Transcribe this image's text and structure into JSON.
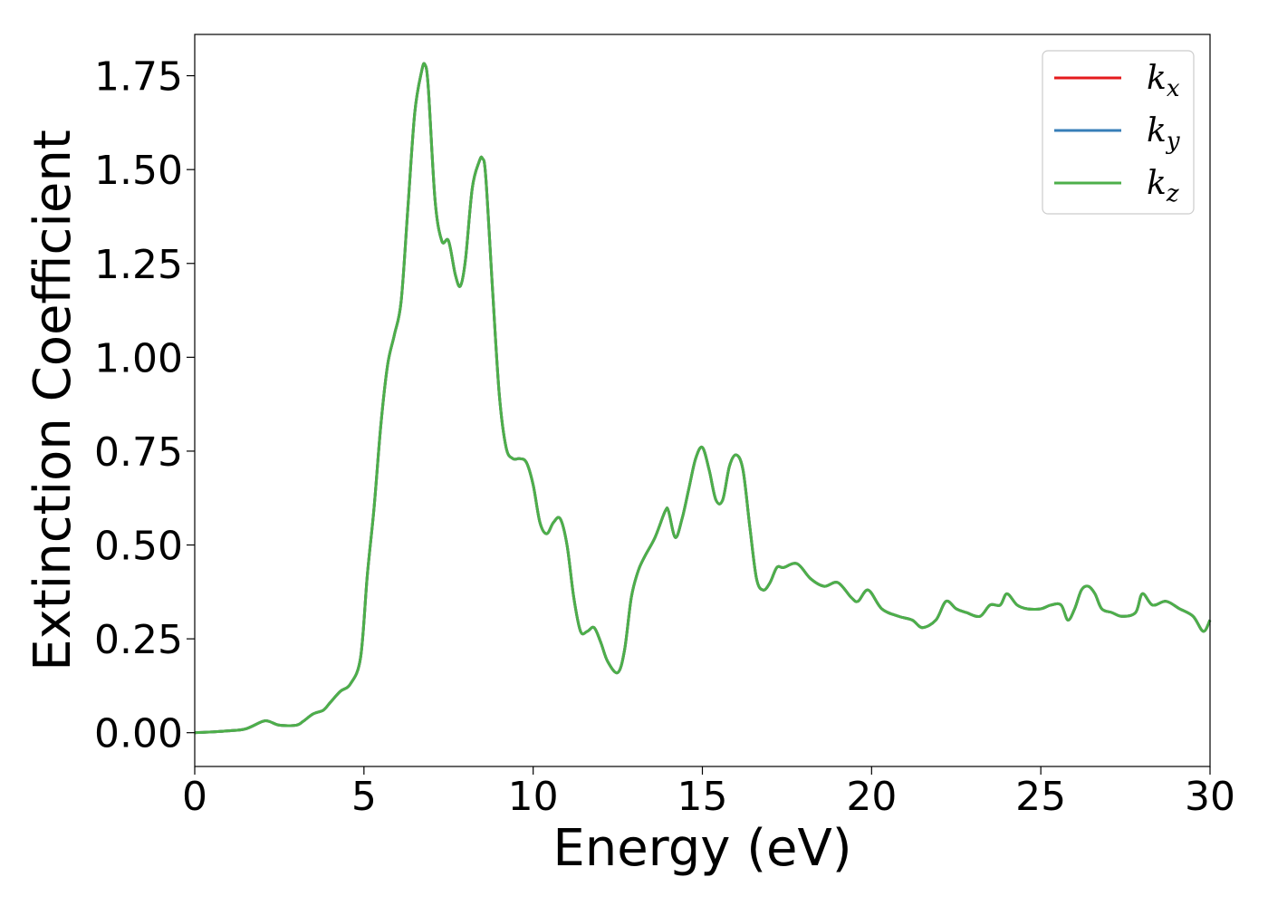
{
  "chart_data": {
    "type": "line",
    "title": "",
    "xlabel": "Energy (eV)",
    "ylabel": "Extinction Coefficient",
    "xlim": [
      0,
      30
    ],
    "ylim": [
      -0.09,
      1.86
    ],
    "xticks": [
      0,
      5,
      10,
      15,
      20,
      25,
      30
    ],
    "xtick_labels": [
      "0",
      "5",
      "10",
      "15",
      "20",
      "25",
      "30"
    ],
    "yticks": [
      0.0,
      0.25,
      0.5,
      0.75,
      1.0,
      1.25,
      1.5,
      1.75
    ],
    "ytick_labels": [
      "0.00",
      "0.25",
      "0.50",
      "0.75",
      "1.00",
      "1.25",
      "1.50",
      "1.75"
    ],
    "grid": false,
    "legend_position": "top-right",
    "x": [
      0,
      0.5,
      1,
      1.5,
      2,
      2.2,
      2.5,
      3,
      3.2,
      3.5,
      3.8,
      4,
      4.3,
      4.6,
      4.9,
      5.1,
      5.3,
      5.5,
      5.7,
      5.9,
      6.1,
      6.3,
      6.5,
      6.7,
      6.8,
      6.9,
      7.1,
      7.3,
      7.5,
      7.7,
      7.85,
      8,
      8.2,
      8.4,
      8.5,
      8.6,
      8.8,
      9,
      9.2,
      9.4,
      9.6,
      9.8,
      10,
      10.2,
      10.4,
      10.6,
      10.8,
      11,
      11.2,
      11.4,
      11.6,
      11.8,
      12,
      12.2,
      12.5,
      12.7,
      12.9,
      13.1,
      13.3,
      13.6,
      13.9,
      14,
      14.2,
      14.4,
      14.6,
      14.8,
      15,
      15.2,
      15.4,
      15.6,
      15.8,
      16,
      16.2,
      16.4,
      16.6,
      16.8,
      17,
      17.2,
      17.4,
      17.8,
      18.2,
      18.6,
      19,
      19.4,
      19.6,
      19.9,
      20.3,
      20.8,
      21.2,
      21.5,
      21.9,
      22.2,
      22.5,
      22.8,
      23.2,
      23.5,
      23.8,
      24,
      24.3,
      24.6,
      25,
      25.3,
      25.6,
      25.8,
      26,
      26.2,
      26.4,
      26.6,
      26.8,
      27.1,
      27.4,
      27.8,
      28,
      28.3,
      28.7,
      29.1,
      29.5,
      29.8,
      30
    ],
    "series": [
      {
        "name": "k_x",
        "legend_main": "k",
        "legend_sub": "x",
        "color": "#e41a1c",
        "values": [
          0,
          0.002,
          0.005,
          0.01,
          0.03,
          0.03,
          0.02,
          0.02,
          0.03,
          0.05,
          0.06,
          0.08,
          0.11,
          0.13,
          0.2,
          0.42,
          0.6,
          0.82,
          0.98,
          1.06,
          1.15,
          1.4,
          1.65,
          1.76,
          1.78,
          1.72,
          1.42,
          1.31,
          1.31,
          1.22,
          1.19,
          1.26,
          1.45,
          1.52,
          1.53,
          1.48,
          1.18,
          0.9,
          0.76,
          0.73,
          0.73,
          0.72,
          0.66,
          0.56,
          0.53,
          0.56,
          0.57,
          0.5,
          0.36,
          0.27,
          0.27,
          0.28,
          0.24,
          0.19,
          0.16,
          0.22,
          0.36,
          0.43,
          0.47,
          0.52,
          0.59,
          0.59,
          0.52,
          0.57,
          0.65,
          0.73,
          0.76,
          0.7,
          0.62,
          0.62,
          0.71,
          0.74,
          0.7,
          0.55,
          0.41,
          0.38,
          0.4,
          0.44,
          0.44,
          0.45,
          0.41,
          0.39,
          0.4,
          0.36,
          0.35,
          0.38,
          0.33,
          0.31,
          0.3,
          0.28,
          0.3,
          0.35,
          0.33,
          0.32,
          0.31,
          0.34,
          0.34,
          0.37,
          0.34,
          0.33,
          0.33,
          0.34,
          0.34,
          0.3,
          0.33,
          0.38,
          0.39,
          0.37,
          0.33,
          0.32,
          0.31,
          0.32,
          0.37,
          0.34,
          0.35,
          0.33,
          0.31,
          0.27,
          0.3
        ]
      },
      {
        "name": "k_y",
        "legend_main": "k",
        "legend_sub": "y",
        "color": "#377eb8",
        "values": [
          0,
          0.002,
          0.005,
          0.01,
          0.03,
          0.03,
          0.02,
          0.02,
          0.03,
          0.05,
          0.06,
          0.08,
          0.11,
          0.13,
          0.2,
          0.42,
          0.6,
          0.82,
          0.98,
          1.06,
          1.15,
          1.4,
          1.65,
          1.76,
          1.78,
          1.72,
          1.42,
          1.31,
          1.31,
          1.22,
          1.19,
          1.26,
          1.45,
          1.52,
          1.53,
          1.48,
          1.18,
          0.9,
          0.76,
          0.73,
          0.73,
          0.72,
          0.66,
          0.56,
          0.53,
          0.56,
          0.57,
          0.5,
          0.36,
          0.27,
          0.27,
          0.28,
          0.24,
          0.19,
          0.16,
          0.22,
          0.36,
          0.43,
          0.47,
          0.52,
          0.59,
          0.59,
          0.52,
          0.57,
          0.65,
          0.73,
          0.76,
          0.7,
          0.62,
          0.62,
          0.71,
          0.74,
          0.7,
          0.55,
          0.41,
          0.38,
          0.4,
          0.44,
          0.44,
          0.45,
          0.41,
          0.39,
          0.4,
          0.36,
          0.35,
          0.38,
          0.33,
          0.31,
          0.3,
          0.28,
          0.3,
          0.35,
          0.33,
          0.32,
          0.31,
          0.34,
          0.34,
          0.37,
          0.34,
          0.33,
          0.33,
          0.34,
          0.34,
          0.3,
          0.33,
          0.38,
          0.39,
          0.37,
          0.33,
          0.32,
          0.31,
          0.32,
          0.37,
          0.34,
          0.35,
          0.33,
          0.31,
          0.27,
          0.3
        ]
      },
      {
        "name": "k_z",
        "legend_main": "k",
        "legend_sub": "z",
        "color": "#4daf4a",
        "values": [
          0,
          0.002,
          0.005,
          0.01,
          0.03,
          0.03,
          0.02,
          0.02,
          0.03,
          0.05,
          0.06,
          0.08,
          0.11,
          0.13,
          0.2,
          0.42,
          0.6,
          0.82,
          0.98,
          1.06,
          1.15,
          1.4,
          1.65,
          1.76,
          1.78,
          1.72,
          1.42,
          1.31,
          1.31,
          1.22,
          1.19,
          1.26,
          1.45,
          1.52,
          1.53,
          1.48,
          1.18,
          0.9,
          0.76,
          0.73,
          0.73,
          0.72,
          0.66,
          0.56,
          0.53,
          0.56,
          0.57,
          0.5,
          0.36,
          0.27,
          0.27,
          0.28,
          0.24,
          0.19,
          0.16,
          0.22,
          0.36,
          0.43,
          0.47,
          0.52,
          0.59,
          0.59,
          0.52,
          0.57,
          0.65,
          0.73,
          0.76,
          0.7,
          0.62,
          0.62,
          0.71,
          0.74,
          0.7,
          0.55,
          0.41,
          0.38,
          0.4,
          0.44,
          0.44,
          0.45,
          0.41,
          0.39,
          0.4,
          0.36,
          0.35,
          0.38,
          0.33,
          0.31,
          0.3,
          0.28,
          0.3,
          0.35,
          0.33,
          0.32,
          0.31,
          0.34,
          0.34,
          0.37,
          0.34,
          0.33,
          0.33,
          0.34,
          0.34,
          0.3,
          0.33,
          0.38,
          0.39,
          0.37,
          0.33,
          0.32,
          0.31,
          0.32,
          0.37,
          0.34,
          0.35,
          0.33,
          0.31,
          0.27,
          0.3
        ]
      }
    ]
  }
}
